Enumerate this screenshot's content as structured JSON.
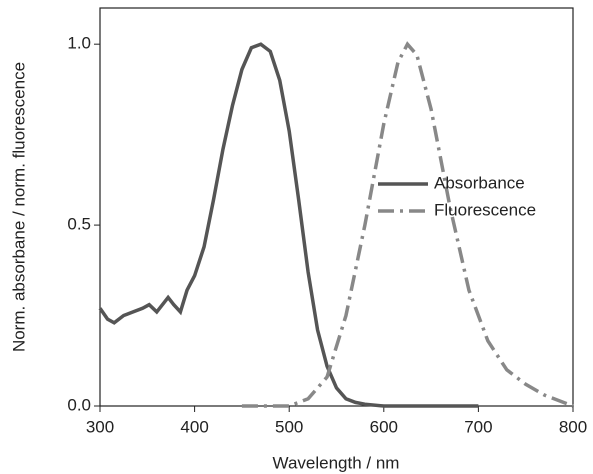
{
  "chart_data": {
    "type": "line",
    "x_label": "Wavelength / nm",
    "y_label": "Norm. absorbane / norm. fluorescence",
    "xlim": [
      300,
      800
    ],
    "xticks": [
      300,
      400,
      500,
      600,
      700,
      800
    ],
    "ylim": [
      0,
      1.1
    ],
    "yticks": [
      {
        "value": 0,
        "label": "0.0"
      },
      0.5,
      {
        "value": 1,
        "label": "1.0"
      }
    ],
    "legend": "center right",
    "series": [
      {
        "name": "Absorbance",
        "color": "#555555",
        "dash": "solid",
        "x": [
          300,
          308,
          315,
          325,
          335,
          345,
          352,
          360,
          366,
          372,
          378,
          385,
          392,
          400,
          410,
          420,
          430,
          440,
          450,
          460,
          470,
          480,
          490,
          500,
          510,
          520,
          530,
          540,
          550,
          560,
          570,
          580,
          600,
          650,
          700
        ],
        "values": [
          0.27,
          0.24,
          0.23,
          0.25,
          0.26,
          0.27,
          0.28,
          0.26,
          0.28,
          0.3,
          0.28,
          0.26,
          0.32,
          0.36,
          0.44,
          0.57,
          0.71,
          0.83,
          0.93,
          0.99,
          1.0,
          0.98,
          0.9,
          0.76,
          0.57,
          0.37,
          0.21,
          0.11,
          0.05,
          0.02,
          0.01,
          0.005,
          0,
          0,
          0
        ]
      },
      {
        "name": "Fluorescence",
        "color": "#888888",
        "dash": "dashdot",
        "x": [
          450,
          480,
          500,
          520,
          540,
          560,
          580,
          600,
          615,
          625,
          635,
          650,
          670,
          690,
          710,
          730,
          750,
          770,
          800
        ],
        "values": [
          0,
          0,
          0,
          0.02,
          0.08,
          0.25,
          0.5,
          0.78,
          0.95,
          1.0,
          0.97,
          0.82,
          0.55,
          0.32,
          0.18,
          0.1,
          0.06,
          0.03,
          0
        ]
      }
    ]
  }
}
